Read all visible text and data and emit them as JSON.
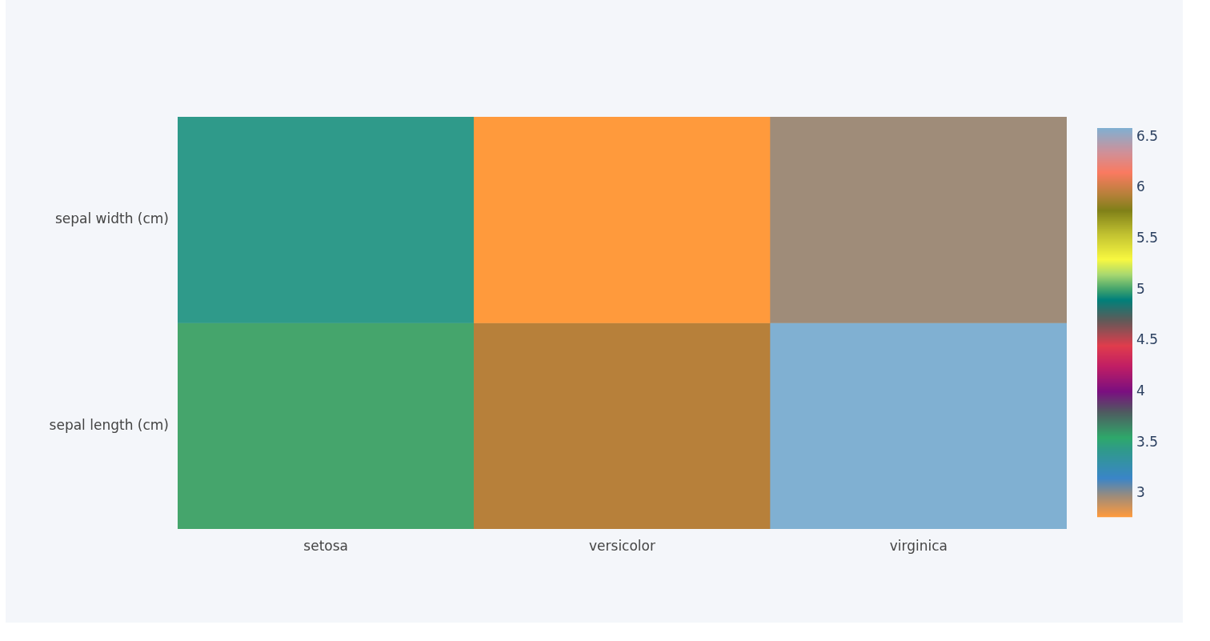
{
  "chart_data": {
    "type": "heatmap",
    "categories": [
      "setosa",
      "versicolor",
      "virginica"
    ],
    "y_categories": [
      "sepal width (cm)",
      "sepal length (cm)"
    ],
    "cells": [
      [
        3.43,
        2.77,
        2.97
      ],
      [
        5.01,
        5.94,
        6.59
      ]
    ],
    "clim": [
      2.77,
      6.59
    ],
    "cticks": [
      3,
      3.5,
      4,
      4.5,
      5,
      5.5,
      6,
      6.5
    ]
  }
}
